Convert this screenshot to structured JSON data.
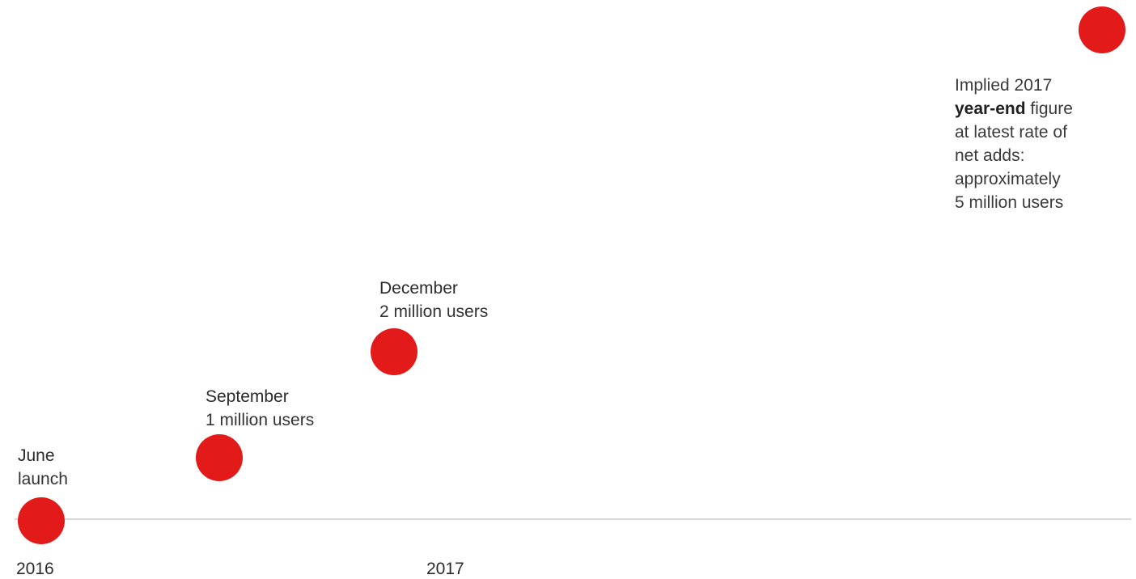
{
  "chart_data": {
    "type": "scatter",
    "x_unit": "date",
    "y_unit": "users (millions)",
    "points": [
      {
        "date": "2016-06",
        "heading": "June",
        "detail": "launch",
        "value": 0
      },
      {
        "date": "2016-09",
        "heading": "September",
        "detail": "1 million users",
        "value": 1
      },
      {
        "date": "2016-12",
        "heading": "December",
        "detail": "2 million users",
        "value": 2
      },
      {
        "date": "2017-12",
        "heading": "",
        "detail": "",
        "value": 5
      }
    ],
    "x_ticks": [
      "2016",
      "2017"
    ],
    "point_color": "#e21a1a",
    "axis_color": "#cccccc",
    "projection_note": {
      "line1": "Implied 2017",
      "bold": "year-end",
      "line2_rest": " figure",
      "line3": "at latest rate of",
      "line4": "net adds:",
      "line5": "approximately",
      "line6": "5 million users"
    }
  }
}
